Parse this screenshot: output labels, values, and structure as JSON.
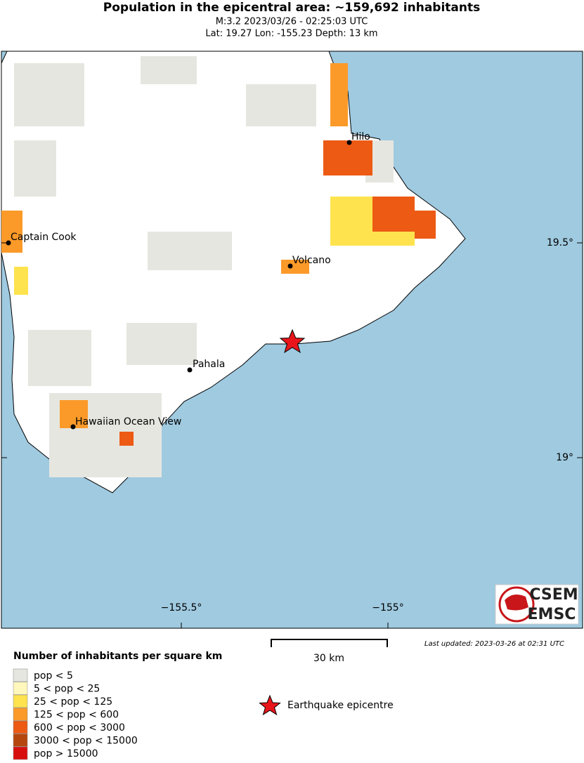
{
  "header": {
    "title": "Population in the epicentral area: ~159,692 inhabitants",
    "subtitle": "M:3.2 2023/03/26 - 02:25:03 UTC",
    "location": "Lat: 19.27 Lon: -155.23 Depth: 13 km"
  },
  "map": {
    "places": [
      {
        "label": "Hilo"
      },
      {
        "label": "Captain Cook"
      },
      {
        "label": "Volcano"
      },
      {
        "label": "Pahala"
      },
      {
        "label": "Hawaiian Ocean View"
      }
    ],
    "lat_labels": [
      "19.5°",
      "19°"
    ],
    "lon_labels": [
      "−155.5°",
      "−155°"
    ],
    "scale_label": "30 km",
    "last_updated": "Last updated: 2023-03-26 at 02:31 UTC",
    "logo": [
      "CSEM",
      "EMSC"
    ]
  },
  "legend": {
    "title": "Number of inhabitants per square km",
    "items": [
      {
        "label": "pop < 5",
        "color": "#e6e6e0"
      },
      {
        "label": "5 < pop < 25",
        "color": "#fff7bc"
      },
      {
        "label": "25 < pop < 125",
        "color": "#fee34f"
      },
      {
        "label": "125 < pop < 600",
        "color": "#fb9a29"
      },
      {
        "label": "600 < pop < 3000",
        "color": "#ec5a14"
      },
      {
        "label": "3000 < pop < 15000",
        "color": "#b5470e"
      },
      {
        "label": "pop > 15000",
        "color": "#d7100e"
      }
    ],
    "epicentre": "Earthquake epicentre"
  }
}
